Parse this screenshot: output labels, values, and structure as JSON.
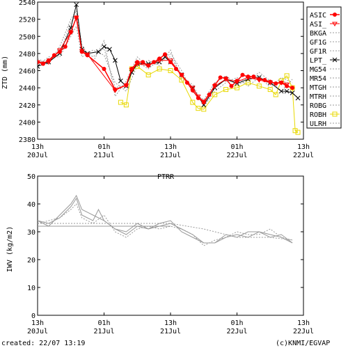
{
  "footer": {
    "created": "created: 22/07 13:19",
    "credit": "(c)KNMI/EGVAP"
  },
  "colors": {
    "asic": "#ff0000",
    "asi_": "#ff0000",
    "lpt": "#000000",
    "robh": "#e8d800",
    "gray": "#999999",
    "axis": "#000000"
  },
  "chart_data": [
    {
      "type": "line",
      "title": "",
      "xlabel": "",
      "ylabel": "ZTD (mm)",
      "ylim": [
        2380,
        2540
      ],
      "xlim": [
        0,
        48
      ],
      "yticks": [
        2380,
        2400,
        2420,
        2440,
        2460,
        2480,
        2500,
        2520,
        2540
      ],
      "xticks": [
        {
          "x": 0,
          "line1": "13h",
          "line2": "20Jul"
        },
        {
          "x": 12,
          "line1": "01h",
          "line2": "21Jul"
        },
        {
          "x": 24,
          "line1": "13h",
          "line2": "21Jul"
        },
        {
          "x": 36,
          "line1": "01h",
          "line2": "22Jul"
        },
        {
          "x": 48,
          "line1": "13h",
          "line2": "22Jul"
        }
      ],
      "grid": false,
      "legend_position": "right",
      "legend": [
        "ASIC",
        "ASI_",
        "BKGA",
        "GF1G",
        "GF1R",
        "LPT_",
        "MG54",
        "MR54",
        "MTGH",
        "MTRH",
        "ROBG",
        "ROBH",
        "ULRH"
      ],
      "series": [
        {
          "name": "ASIC",
          "x": [
            0,
            1,
            2,
            3,
            4,
            5,
            6,
            7,
            8,
            9,
            12,
            14,
            16,
            17,
            18,
            19,
            20,
            21,
            22,
            23,
            24,
            25,
            26,
            27,
            28,
            29,
            30,
            31,
            32,
            33,
            34,
            35,
            36,
            37,
            38,
            39,
            40,
            41,
            42,
            43,
            44,
            45,
            46
          ],
          "y": [
            2470,
            2468,
            2472,
            2478,
            2482,
            2488,
            2505,
            2522,
            2482,
            2478,
            2462,
            2438,
            2443,
            2462,
            2470,
            2470,
            2466,
            2470,
            2474,
            2479,
            2470,
            2462,
            2455,
            2446,
            2437,
            2428,
            2423,
            2432,
            2443,
            2452,
            2451,
            2442,
            2448,
            2455,
            2453,
            2453,
            2450,
            2449,
            2447,
            2445,
            2446,
            2442,
            2440
          ]
        },
        {
          "name": "ASI_",
          "x": [
            0,
            2,
            4,
            6,
            7,
            8,
            9,
            14,
            16,
            17,
            18,
            20,
            22,
            24,
            26,
            28,
            29,
            30,
            32,
            34,
            36,
            38,
            40,
            42,
            44,
            45
          ],
          "y": [
            2470,
            2470,
            2484,
            2505,
            2522,
            2483,
            2479,
            2437,
            2443,
            2461,
            2468,
            2466,
            2472,
            2472,
            2455,
            2440,
            2430,
            2424,
            2442,
            2450,
            2447,
            2452,
            2449,
            2446,
            2446,
            2444
          ]
        },
        {
          "name": "LPT_",
          "x": [
            0,
            2,
            4,
            6,
            7,
            8,
            9,
            11,
            12,
            13,
            14,
            15,
            16,
            17,
            18,
            20,
            22,
            23,
            24,
            26,
            28,
            30,
            32,
            34,
            36,
            38,
            40,
            42,
            44,
            45,
            46,
            47
          ],
          "y": [
            2465,
            2470,
            2480,
            2510,
            2537,
            2485,
            2480,
            2482,
            2488,
            2485,
            2472,
            2448,
            2442,
            2458,
            2468,
            2468,
            2470,
            2476,
            2470,
            2455,
            2440,
            2420,
            2440,
            2450,
            2445,
            2450,
            2452,
            2446,
            2436,
            2436,
            2434,
            2428
          ]
        },
        {
          "name": "ROBH",
          "x": [
            15,
            16,
            17,
            18,
            20,
            22,
            24,
            26,
            28,
            29,
            30,
            32,
            34,
            36,
            38,
            40,
            42,
            43,
            44,
            45,
            46,
            46.5,
            47
          ],
          "y": [
            2423,
            2420,
            2462,
            2465,
            2455,
            2462,
            2460,
            2449,
            2423,
            2416,
            2415,
            2432,
            2438,
            2440,
            2446,
            2442,
            2438,
            2432,
            2448,
            2454,
            2440,
            2390,
            2388
          ]
        },
        {
          "name": "BKGA",
          "x": [
            0,
            2,
            4,
            6,
            7,
            8,
            10,
            12,
            14,
            16,
            18,
            20,
            22,
            24,
            26,
            28,
            30,
            32,
            34,
            36,
            38,
            40,
            42,
            44,
            46
          ],
          "y": [
            2474,
            2468,
            2488,
            2520,
            2530,
            2490,
            2470,
            2495,
            2430,
            2448,
            2476,
            2464,
            2470,
            2480,
            2460,
            2435,
            2426,
            2446,
            2454,
            2444,
            2448,
            2458,
            2448,
            2436,
            2450
          ]
        },
        {
          "name": "MR54",
          "x": [
            0,
            2,
            4,
            6,
            7,
            8,
            10,
            12,
            14,
            16,
            18,
            20,
            22,
            24,
            26,
            28,
            30,
            32,
            34,
            36,
            38,
            40,
            42,
            44,
            46
          ],
          "y": [
            2466,
            2476,
            2476,
            2500,
            2512,
            2476,
            2484,
            2478,
            2446,
            2436,
            2466,
            2472,
            2466,
            2484,
            2450,
            2444,
            2418,
            2436,
            2446,
            2452,
            2442,
            2452,
            2444,
            2448,
            2444
          ]
        },
        {
          "name": "MTGH",
          "x": [
            0,
            2,
            4,
            6,
            7,
            8,
            10,
            12,
            14,
            16,
            18,
            20,
            22,
            24,
            26,
            28,
            30,
            32,
            34,
            36,
            38,
            40,
            42,
            44,
            46
          ],
          "y": [
            2470,
            2472,
            2480,
            2516,
            2526,
            2486,
            2476,
            2486,
            2440,
            2444,
            2470,
            2462,
            2474,
            2476,
            2456,
            2436,
            2424,
            2442,
            2450,
            2448,
            2450,
            2454,
            2440,
            2452,
            2446
          ]
        }
      ]
    },
    {
      "type": "line",
      "title": "PTRR",
      "xlabel": "",
      "ylabel": "IWV (kg/m2)",
      "ylim": [
        0,
        50
      ],
      "xlim": [
        0,
        48
      ],
      "yticks": [
        0,
        10,
        20,
        30,
        40,
        50
      ],
      "xticks": [
        {
          "x": 0,
          "line1": "13h",
          "line2": "20Jul"
        },
        {
          "x": 12,
          "line1": "01h",
          "line2": "21Jul"
        },
        {
          "x": 24,
          "line1": "13h",
          "line2": "21Jul"
        },
        {
          "x": 36,
          "line1": "01h",
          "line2": "22Jul"
        },
        {
          "x": 48,
          "line1": "13h",
          "line2": "22Jul"
        }
      ],
      "grid": false,
      "series": [
        {
          "x": [
            0,
            2,
            4,
            6,
            7,
            8,
            9,
            10,
            11,
            12,
            14,
            16,
            18,
            20,
            22,
            24,
            26,
            28,
            30,
            32,
            34,
            36,
            38,
            40,
            42,
            44,
            46
          ],
          "y": [
            34,
            33,
            35,
            39,
            42,
            36,
            35,
            34,
            38,
            34,
            31,
            29,
            32,
            31,
            32,
            33,
            31,
            29,
            26,
            26,
            28,
            29,
            28,
            30,
            29,
            28,
            26
          ]
        },
        {
          "x": [
            0,
            2,
            4,
            6,
            7,
            8,
            10,
            12,
            14,
            16,
            18,
            20,
            22,
            24,
            26,
            28,
            30,
            32,
            34,
            36,
            38,
            40,
            42,
            44,
            46
          ],
          "y": [
            33,
            34,
            35,
            38,
            40,
            35,
            33,
            36,
            30,
            28,
            31,
            32,
            31,
            32,
            31,
            29,
            25,
            27,
            28,
            30,
            29,
            29,
            31,
            28,
            27
          ]
        },
        {
          "x": [
            0,
            2,
            4,
            6,
            7,
            8,
            10,
            12,
            14,
            16,
            18,
            20,
            22,
            24,
            26,
            28,
            30,
            32,
            34,
            36,
            38,
            40,
            42,
            44,
            46
          ],
          "y": [
            34,
            32,
            36,
            40,
            43,
            38,
            36,
            34,
            31,
            30,
            33,
            31,
            33,
            34,
            30,
            28,
            26,
            26,
            29,
            28,
            30,
            30,
            28,
            29,
            26
          ]
        },
        {
          "x": [
            0,
            6,
            12,
            24,
            30,
            36,
            42,
            46
          ],
          "y": [
            33,
            33,
            33,
            33,
            31,
            28,
            28,
            27
          ]
        },
        {
          "x": [
            0,
            12,
            24
          ],
          "y": [
            32,
            32,
            32
          ]
        }
      ]
    }
  ]
}
